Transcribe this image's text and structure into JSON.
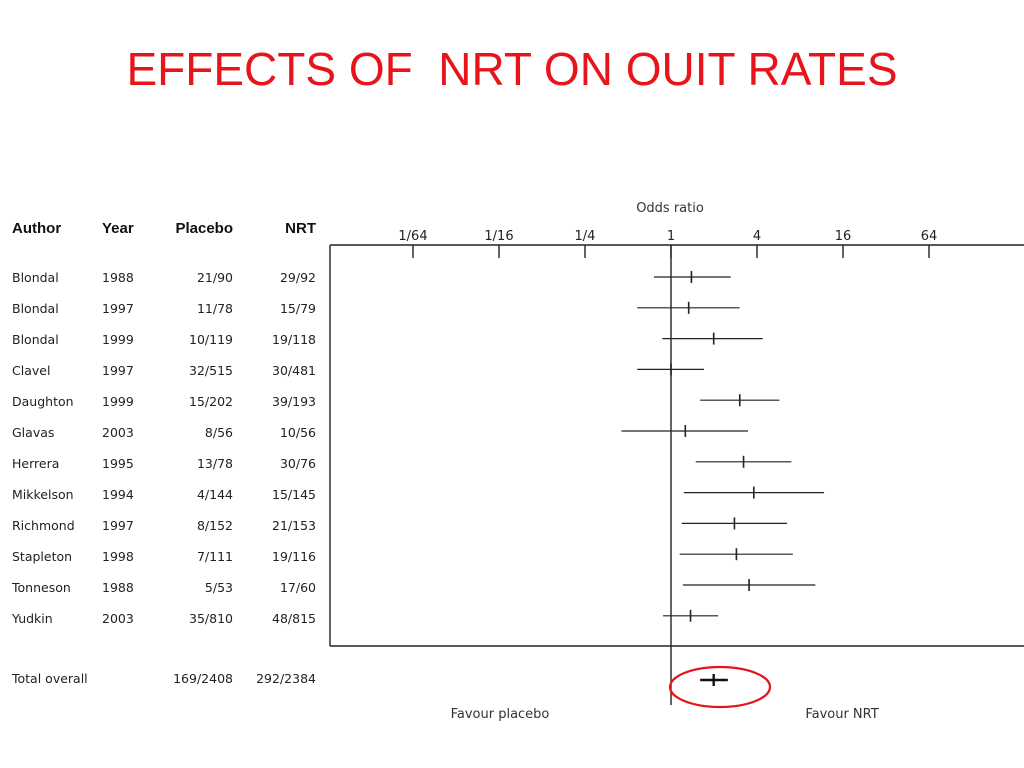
{
  "title": "EFFECTS OF  NRT ON OUIT RATES",
  "table": {
    "headers": {
      "author": "Author",
      "year": "Year",
      "placebo": "Placebo",
      "nrt": "NRT"
    },
    "rows": [
      {
        "author": "Blondal",
        "year": "1988",
        "placebo": "21/90",
        "nrt": "29/92"
      },
      {
        "author": "Blondal",
        "year": "1997",
        "placebo": "11/78",
        "nrt": "15/79"
      },
      {
        "author": "Blondal",
        "year": "1999",
        "placebo": "10/119",
        "nrt": "19/118"
      },
      {
        "author": "Clavel",
        "year": "1997",
        "placebo": "32/515",
        "nrt": "30/481"
      },
      {
        "author": "Daughton",
        "year": "1999",
        "placebo": "15/202",
        "nrt": "39/193"
      },
      {
        "author": "Glavas",
        "year": "2003",
        "placebo": "8/56",
        "nrt": "10/56"
      },
      {
        "author": "Herrera",
        "year": "1995",
        "placebo": "13/78",
        "nrt": "30/76"
      },
      {
        "author": "Mikkelson",
        "year": "1994",
        "placebo": "4/144",
        "nrt": "15/145"
      },
      {
        "author": "Richmond",
        "year": "1997",
        "placebo": "8/152",
        "nrt": "21/153"
      },
      {
        "author": "Stapleton",
        "year": "1998",
        "placebo": "7/111",
        "nrt": "19/116"
      },
      {
        "author": "Tonneson",
        "year": "1988",
        "placebo": "5/53",
        "nrt": "17/60"
      },
      {
        "author": "Yudkin",
        "year": "2003",
        "placebo": "35/810",
        "nrt": "48/815"
      }
    ],
    "total": {
      "author": "Total overall",
      "year": "",
      "placebo": "169/2408",
      "nrt": "292/2384"
    }
  },
  "chart_data": {
    "type": "forest",
    "title": "",
    "xlabel": "Odds ratio",
    "x_scale": "log2",
    "xlim": [
      0.0078125,
      128
    ],
    "ticks": [
      {
        "value": 0.015625,
        "label": "1/64"
      },
      {
        "value": 0.0625,
        "label": "1/16"
      },
      {
        "value": 0.25,
        "label": "1/4"
      },
      {
        "value": 1,
        "label": "1"
      },
      {
        "value": 4,
        "label": "4"
      },
      {
        "value": 16,
        "label": "16"
      },
      {
        "value": 64,
        "label": "64"
      }
    ],
    "reference_line": 1,
    "studies": [
      {
        "or": 1.39,
        "lo": 0.76,
        "hi": 2.62
      },
      {
        "or": 1.33,
        "lo": 0.58,
        "hi": 3.02
      },
      {
        "or": 1.99,
        "lo": 0.87,
        "hi": 4.38
      },
      {
        "or": 1.0,
        "lo": 0.58,
        "hi": 1.7
      },
      {
        "or": 3.03,
        "lo": 1.6,
        "hi": 5.74
      },
      {
        "or": 1.26,
        "lo": 0.45,
        "hi": 3.46
      },
      {
        "or": 3.22,
        "lo": 1.49,
        "hi": 6.96
      },
      {
        "or": 3.8,
        "lo": 1.23,
        "hi": 11.78
      },
      {
        "or": 2.78,
        "lo": 1.19,
        "hi": 6.5
      },
      {
        "or": 2.87,
        "lo": 1.15,
        "hi": 7.13
      },
      {
        "or": 3.52,
        "lo": 1.21,
        "hi": 10.25
      },
      {
        "or": 1.37,
        "lo": 0.88,
        "hi": 2.14
      }
    ],
    "overall": {
      "or": 1.99,
      "lo": 1.6,
      "hi": 2.5
    },
    "annotations": {
      "left": "Favour placebo",
      "right": "Favour NRT"
    },
    "highlight_color": "#e8141b"
  }
}
